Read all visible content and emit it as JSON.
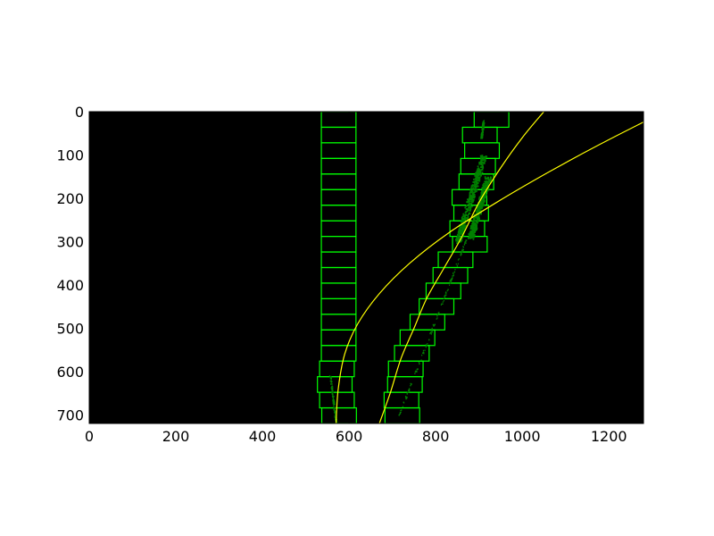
{
  "chart_data": {
    "type": "scatter",
    "title": "",
    "xlabel": "",
    "ylabel": "",
    "xlim": [
      0,
      1280
    ],
    "ylim": [
      720,
      0
    ],
    "y_axis_inverted": true,
    "grid": false,
    "legend": "none",
    "background_color": "#000000",
    "x_ticks": [
      0,
      200,
      400,
      600,
      800,
      1000,
      1200
    ],
    "y_ticks": [
      0,
      100,
      200,
      300,
      400,
      500,
      600,
      700
    ],
    "x_tick_labels": [
      "0",
      "200",
      "400",
      "600",
      "800",
      "1000",
      "1200"
    ],
    "y_tick_labels": [
      "0",
      "100",
      "200",
      "300",
      "400",
      "500",
      "600",
      "700"
    ],
    "colors": {
      "window": "#00ff00",
      "fit": "#ffff00",
      "pixels": "#008000",
      "frame": "#000000"
    },
    "window_height": 36,
    "left_windows": [
      {
        "x": 537,
        "y": 684,
        "w": 80
      },
      {
        "x": 532,
        "y": 648,
        "w": 80
      },
      {
        "x": 527,
        "y": 612,
        "w": 80
      },
      {
        "x": 532,
        "y": 576,
        "w": 80
      },
      {
        "x": 536,
        "y": 540,
        "w": 80
      },
      {
        "x": 536,
        "y": 504,
        "w": 80
      },
      {
        "x": 536,
        "y": 468,
        "w": 80
      },
      {
        "x": 536,
        "y": 432,
        "w": 80
      },
      {
        "x": 536,
        "y": 396,
        "w": 80
      },
      {
        "x": 536,
        "y": 360,
        "w": 80
      },
      {
        "x": 536,
        "y": 324,
        "w": 80
      },
      {
        "x": 536,
        "y": 288,
        "w": 80
      },
      {
        "x": 536,
        "y": 252,
        "w": 80
      },
      {
        "x": 536,
        "y": 216,
        "w": 80
      },
      {
        "x": 536,
        "y": 180,
        "w": 80
      },
      {
        "x": 536,
        "y": 144,
        "w": 80
      },
      {
        "x": 536,
        "y": 108,
        "w": 80
      },
      {
        "x": 536,
        "y": 72,
        "w": 80
      },
      {
        "x": 536,
        "y": 36,
        "w": 80
      },
      {
        "x": 536,
        "y": 0,
        "w": 80
      }
    ],
    "right_windows": [
      {
        "x": 683,
        "y": 684,
        "w": 80
      },
      {
        "x": 681,
        "y": 648,
        "w": 80
      },
      {
        "x": 689,
        "y": 612,
        "w": 80
      },
      {
        "x": 691,
        "y": 576,
        "w": 80
      },
      {
        "x": 705,
        "y": 540,
        "w": 80
      },
      {
        "x": 718,
        "y": 504,
        "w": 80
      },
      {
        "x": 741,
        "y": 468,
        "w": 80
      },
      {
        "x": 762,
        "y": 432,
        "w": 80
      },
      {
        "x": 778,
        "y": 396,
        "w": 80
      },
      {
        "x": 794,
        "y": 360,
        "w": 80
      },
      {
        "x": 806,
        "y": 324,
        "w": 80
      },
      {
        "x": 839,
        "y": 288,
        "w": 80
      },
      {
        "x": 833,
        "y": 252,
        "w": 80
      },
      {
        "x": 842,
        "y": 216,
        "w": 80
      },
      {
        "x": 838,
        "y": 180,
        "w": 80
      },
      {
        "x": 854,
        "y": 144,
        "w": 80
      },
      {
        "x": 858,
        "y": 108,
        "w": 80
      },
      {
        "x": 867,
        "y": 72,
        "w": 80
      },
      {
        "x": 862,
        "y": 36,
        "w": 80
      },
      {
        "x": 889,
        "y": 0,
        "w": 80
      }
    ],
    "lane_pixels": [
      {
        "from": [
          570,
          719
        ],
        "to": [
          556,
          610
        ],
        "dense": false
      },
      {
        "from": [
          715,
          700
        ],
        "to": [
          872,
          290
        ],
        "dense": false
      },
      {
        "from": [
          850,
          300
        ],
        "to": [
          910,
          100
        ],
        "dense": true
      },
      {
        "from": [
          880,
          290
        ],
        "to": [
          920,
          150
        ],
        "dense": true
      },
      {
        "from": [
          905,
          60
        ],
        "to": [
          910,
          20
        ],
        "dense": false
      }
    ],
    "fit_curves": [
      {
        "from_y": 0,
        "to_y": 720,
        "x0": 1050,
        "x1": 670
      },
      {
        "from_x": 570,
        "to_x": 1280,
        "y_end": 24,
        "y_start": 720
      }
    ],
    "fit_points": [
      [
        [
          1050,
          0
        ],
        [
          1000,
          60
        ],
        [
          950,
          130
        ],
        [
          900,
          210
        ],
        [
          860,
          290
        ],
        [
          820,
          360
        ],
        [
          780,
          430
        ],
        [
          750,
          500
        ],
        [
          720,
          570
        ],
        [
          695,
          650
        ],
        [
          670,
          720
        ]
      ],
      [
        [
          570,
          720
        ],
        [
          575,
          640
        ],
        [
          590,
          560
        ],
        [
          620,
          490
        ],
        [
          670,
          420
        ],
        [
          740,
          350
        ],
        [
          830,
          280
        ],
        [
          940,
          210
        ],
        [
          1060,
          140
        ],
        [
          1180,
          75
        ],
        [
          1280,
          24
        ]
      ]
    ]
  }
}
